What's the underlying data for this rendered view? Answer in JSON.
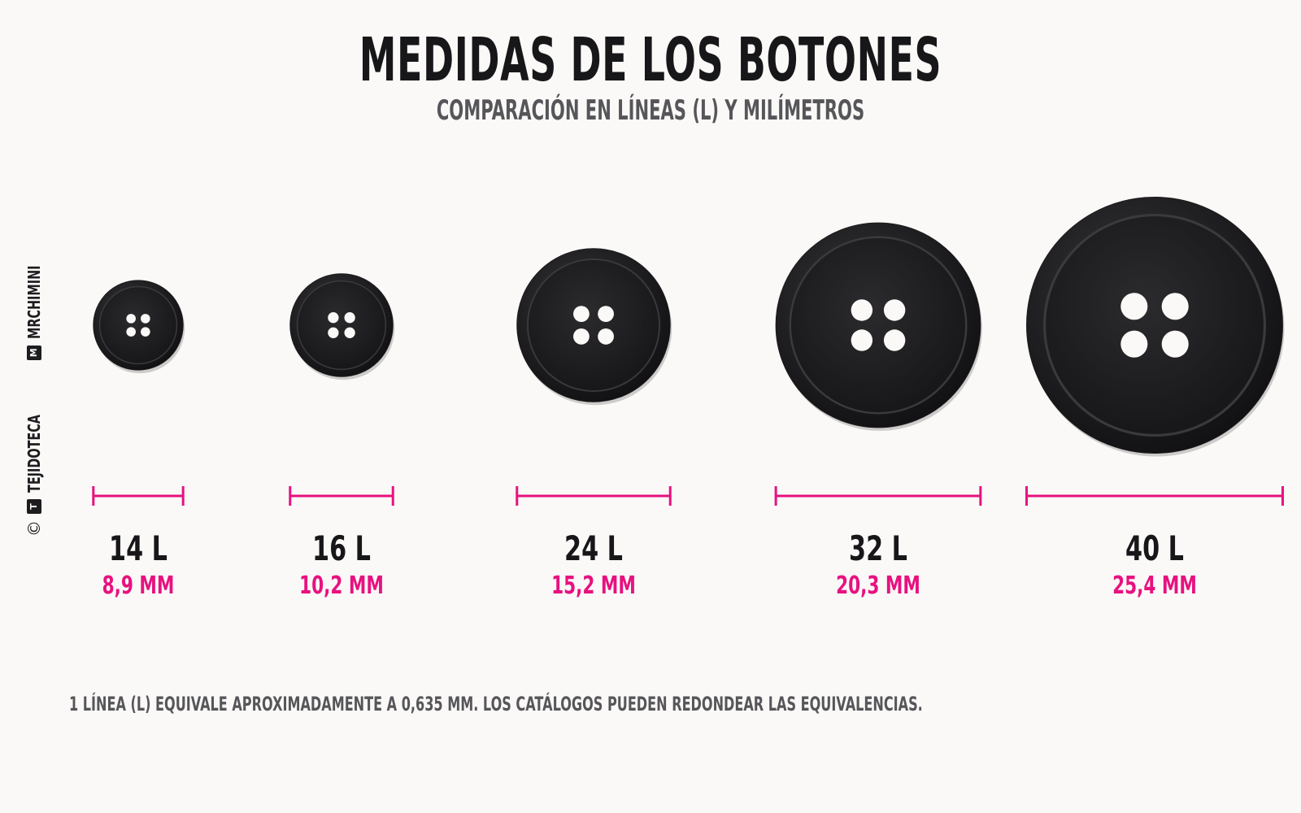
{
  "header": {
    "title": "MEDIDAS DE LOS BOTONES",
    "subtitle": "COMPARACIÓN EN LÍNEAS (L) Y MILÍMETROS"
  },
  "credits": {
    "copyright_symbol": "©",
    "brand_1": "TEJIDOTECA",
    "brand_1_badge": "T",
    "brand_2": "MRCHIMINI",
    "brand_2_badge": "M"
  },
  "colors": {
    "button": "#1b1b1d",
    "accent": "#e8117f",
    "text_dark": "#17171a",
    "text_gray": "#56565a"
  },
  "buttons": [
    {
      "ligne_label": "14 L",
      "mm_label": "8,9 MM",
      "mm": 8.9
    },
    {
      "ligne_label": "16 L",
      "mm_label": "10,2 MM",
      "mm": 10.2
    },
    {
      "ligne_label": "24 L",
      "mm_label": "15,2 MM",
      "mm": 15.2
    },
    {
      "ligne_label": "32 L",
      "mm_label": "20,3 MM",
      "mm": 20.3
    },
    {
      "ligne_label": "40 L",
      "mm_label": "25,4 MM",
      "mm": 25.4
    }
  ],
  "footnote": "1 LÍNEA (L) EQUIVALE APROXIMADAMENTE A 0,635 MM. LOS CATÁLOGOS PUEDEN REDONDEAR LAS EQUIVALENCIAS."
}
